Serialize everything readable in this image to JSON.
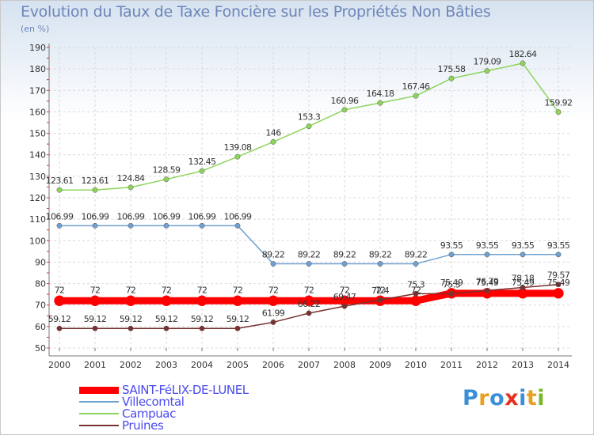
{
  "title": "Evolution du Taux de Taxe Foncière sur les Propriétés Non Bâties",
  "subtitle": "(en %)",
  "logo": {
    "text": "Proxiti",
    "colors": [
      "#3a8fd6",
      "#e8a020",
      "#3a8fd6",
      "#e83020",
      "#3a8fd6",
      "#e8a020",
      "#79b52a"
    ]
  },
  "colors": {
    "axis": "#777777",
    "grid": "#d9d9d9",
    "label": "#333333",
    "axis_tick_accent": "#d03030"
  },
  "chart_data": {
    "type": "line",
    "x": [
      "2000",
      "2001",
      "2002",
      "2003",
      "2004",
      "2005",
      "2006",
      "2007",
      "2008",
      "2009",
      "2010",
      "2011",
      "2012",
      "2013",
      "2014"
    ],
    "ylim": [
      50,
      190
    ],
    "yticks": [
      50,
      60,
      70,
      80,
      90,
      100,
      110,
      120,
      130,
      140,
      150,
      160,
      170,
      180,
      190
    ],
    "grid": true,
    "legend_position": "bottom-left",
    "series": [
      {
        "name": "SAINT-FéLIX-DE-LUNEL",
        "color": "#ff0000",
        "width": 9,
        "values": [
          72,
          72,
          72,
          72,
          72,
          72,
          72,
          72,
          72,
          72,
          72,
          75.49,
          75.49,
          75.49,
          75.49
        ],
        "labels": [
          "72",
          "72",
          "72",
          "72",
          "72",
          "72",
          "72",
          "72",
          "72",
          "72",
          "72",
          "75.49",
          "75.49",
          "75.49",
          "75.49"
        ]
      },
      {
        "name": "Villecomtal",
        "color": "#6fa0d0",
        "width": 1.5,
        "values": [
          106.99,
          106.99,
          106.99,
          106.99,
          106.99,
          106.99,
          89.22,
          89.22,
          89.22,
          89.22,
          89.22,
          93.55,
          93.55,
          93.55,
          93.55
        ],
        "labels": [
          "106.99",
          "106.99",
          "106.99",
          "106.99",
          "106.99",
          "106.99",
          "89.22",
          "89.22",
          "89.22",
          "89.22",
          "89.22",
          "93.55",
          "93.55",
          "93.55",
          "93.55"
        ]
      },
      {
        "name": "Campuac",
        "color": "#8ed45a",
        "width": 1.5,
        "values": [
          123.61,
          123.61,
          124.84,
          128.59,
          132.45,
          139.08,
          146,
          153.3,
          160.96,
          164.18,
          167.46,
          175.58,
          179.09,
          182.64,
          159.92
        ],
        "labels": [
          "123.61",
          "123.61",
          "124.84",
          "128.59",
          "132.45",
          "139.08",
          "146",
          "153.3",
          "160.96",
          "164.18",
          "167.46",
          "175.58",
          "179.09",
          "182.64",
          "159.92"
        ]
      },
      {
        "name": "Pruines",
        "color": "#7a3030",
        "width": 1.5,
        "values": [
          59.12,
          59.12,
          59.12,
          59.12,
          59.12,
          59.12,
          61.99,
          66.22,
          69.47,
          72.4,
          75.3,
          75.3,
          76.79,
          78.18,
          79.57
        ],
        "labels": [
          "59.12",
          "59.12",
          "59.12",
          "59.12",
          "59.12",
          "59.12",
          "61.99",
          "66.22",
          "69.47",
          "72.4",
          "75.3",
          "75.3",
          "76.79",
          "78.18",
          "79.57"
        ]
      }
    ]
  }
}
